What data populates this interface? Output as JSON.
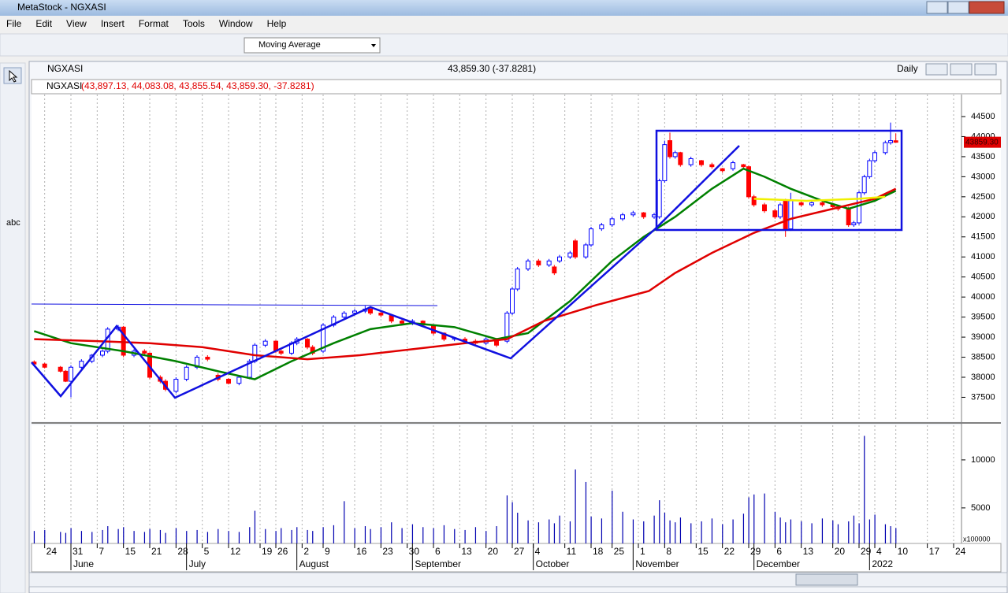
{
  "window": {
    "title": "MetaStock - NGXASI"
  },
  "menu": [
    "File",
    "Edit",
    "View",
    "Insert",
    "Format",
    "Tools",
    "Window",
    "Help"
  ],
  "toolbar": {
    "indicator": "Moving Average"
  },
  "tool_palette": {
    "text_tool": "abc"
  },
  "chart_window": {
    "title": "NGXASI",
    "quote": "43,859.30 (-37.8281)",
    "period": "Daily",
    "legend_name": "NGXASI",
    "legend_values": "(43,897.13, 44,083.08, 43,855.54, 43,859.30, -37.8281)",
    "price_tag": "43859.30"
  },
  "chart_data": [
    {
      "type": "candlestick",
      "x": [
        -2,
        0,
        3,
        4,
        5,
        7,
        9,
        11,
        12,
        14,
        15,
        17,
        19,
        20,
        22,
        23,
        25,
        27,
        29,
        31,
        33,
        35,
        37,
        39,
        40,
        42,
        44,
        45,
        47,
        48,
        50,
        51,
        53,
        55,
        57,
        59,
        61,
        62,
        64,
        66,
        68,
        70,
        72,
        74,
        76,
        78,
        80,
        82,
        84,
        86,
        88,
        89,
        90,
        92,
        94,
        96,
        97,
        98,
        100,
        101,
        103,
        104,
        106,
        108,
        110,
        112,
        114,
        116,
        117,
        118,
        119,
        120,
        121,
        123,
        125,
        127,
        129,
        131,
        133,
        134,
        135,
        137,
        139,
        140,
        141,
        142,
        144,
        146,
        148,
        150,
        151,
        153,
        154,
        155,
        156,
        157,
        158,
        160,
        161,
        162
      ],
      "open": [
        38380,
        38330,
        38250,
        38150,
        37900,
        38250,
        38400,
        38550,
        38650,
        39200,
        39250,
        38550,
        38650,
        38600,
        38000,
        37900,
        37650,
        37950,
        38250,
        38500,
        38050,
        37950,
        37850,
        38000,
        38400,
        38800,
        38900,
        38650,
        38600,
        38850,
        38950,
        38750,
        38650,
        39300,
        39500,
        39600,
        39650,
        39700,
        39600,
        39550,
        39400,
        39350,
        39400,
        39300,
        39100,
        38950,
        38950,
        38900,
        38850,
        38950,
        38900,
        39600,
        40200,
        40700,
        40900,
        40800,
        40750,
        40900,
        41000,
        41400,
        41000,
        41300,
        41700,
        41800,
        41950,
        42050,
        42100,
        42000,
        42000,
        42900,
        43900,
        43500,
        43600,
        43300,
        43400,
        43300,
        43200,
        43200,
        43300,
        43250,
        42500,
        42300,
        42150,
        42000,
        42400,
        41700,
        42350,
        42300,
        42350,
        42300,
        42250,
        42200,
        41800,
        41850,
        42600,
        43000,
        43400,
        43600,
        43850,
        43897.13
      ],
      "high": [
        38420,
        38360,
        38280,
        38180,
        38300,
        38450,
        38580,
        38700,
        39250,
        39300,
        39280,
        38700,
        38700,
        38620,
        38050,
        37950,
        38000,
        38300,
        38550,
        38550,
        38100,
        37980,
        38050,
        38450,
        38850,
        38950,
        38920,
        38700,
        38900,
        39000,
        38980,
        38800,
        39350,
        39550,
        39650,
        39700,
        39780,
        39720,
        39650,
        39580,
        39450,
        39450,
        39420,
        39320,
        39120,
        39000,
        39000,
        38950,
        39000,
        38980,
        39650,
        40250,
        40750,
        40950,
        40950,
        40950,
        40800,
        41050,
        41150,
        41450,
        41350,
        41750,
        41850,
        42000,
        42100,
        42150,
        42120,
        42100,
        42950,
        43900,
        44100,
        43650,
        43620,
        43500,
        43420,
        43350,
        43220,
        43400,
        43320,
        43280,
        42550,
        42350,
        42200,
        42350,
        42450,
        42600,
        42400,
        42400,
        42400,
        42350,
        42300,
        42250,
        41900,
        42650,
        43050,
        43450,
        43650,
        43900,
        44350,
        44083.08
      ],
      "low": [
        38300,
        38220,
        38120,
        37880,
        37500,
        38200,
        38350,
        38500,
        38600,
        39150,
        38500,
        38500,
        38550,
        37950,
        37850,
        37650,
        37600,
        37900,
        38200,
        38400,
        37900,
        37820,
        37800,
        37950,
        38350,
        38750,
        38600,
        38550,
        38550,
        38800,
        38700,
        38550,
        38600,
        39250,
        39450,
        39550,
        39600,
        39550,
        39500,
        39350,
        39300,
        39300,
        39250,
        39050,
        38900,
        38900,
        38850,
        38800,
        38800,
        38750,
        38850,
        39550,
        40150,
        40650,
        40750,
        40750,
        40550,
        40850,
        40950,
        40950,
        40950,
        41250,
        41650,
        41750,
        41900,
        42000,
        41950,
        41950,
        41950,
        42850,
        43450,
        43450,
        43250,
        43250,
        43250,
        43200,
        43100,
        43150,
        43200,
        42450,
        42250,
        42100,
        41950,
        41950,
        41500,
        41650,
        42250,
        42250,
        42250,
        42200,
        42150,
        41750,
        41750,
        41800,
        42550,
        42950,
        43350,
        43550,
        43800,
        43855.54
      ],
      "close": [
        38330,
        38250,
        38150,
        37900,
        38250,
        38400,
        38550,
        38650,
        39200,
        39250,
        38550,
        38650,
        38600,
        38000,
        37900,
        37700,
        37950,
        38250,
        38500,
        38450,
        37950,
        37850,
        38000,
        38400,
        38800,
        38900,
        38650,
        38600,
        38850,
        38950,
        38750,
        38600,
        39300,
        39500,
        39600,
        39650,
        39700,
        39600,
        39550,
        39400,
        39350,
        39400,
        39300,
        39100,
        38950,
        38980,
        38900,
        38850,
        38950,
        38800,
        39600,
        40200,
        40700,
        40900,
        40800,
        40900,
        40600,
        41000,
        41100,
        41000,
        41300,
        41700,
        41800,
        41950,
        42050,
        42100,
        42000,
        42050,
        42900,
        43800,
        43500,
        43600,
        43300,
        43450,
        43300,
        43250,
        43150,
        43350,
        43250,
        42500,
        42300,
        42150,
        42000,
        42300,
        41700,
        42400,
        42300,
        42350,
        42300,
        42250,
        42200,
        41800,
        41850,
        42600,
        43000,
        43400,
        43600,
        43850,
        43900,
        43859.3
      ],
      "up_color": "#0000ff",
      "down_color": "#ff0000",
      "series": [
        {
          "color": "#008000",
          "x": [
            -2,
            5,
            15,
            25,
            33,
            40,
            47,
            55,
            62,
            70,
            78,
            86,
            92,
            100,
            108,
            114,
            120,
            127,
            133,
            137,
            142,
            148,
            153,
            158,
            162
          ],
          "values": [
            39150,
            38850,
            38650,
            38400,
            38150,
            37950,
            38400,
            38850,
            39200,
            39350,
            39250,
            38950,
            39100,
            39900,
            40900,
            41500,
            42000,
            42700,
            43200,
            43000,
            42700,
            42400,
            42200,
            42400,
            42650
          ]
        },
        {
          "color": "#e00000",
          "x": [
            -2,
            10,
            20,
            30,
            40,
            50,
            60,
            70,
            80,
            88,
            95,
            105,
            115,
            120,
            127,
            135,
            142,
            150,
            158,
            162
          ],
          "values": [
            38950,
            38900,
            38850,
            38750,
            38550,
            38450,
            38550,
            38700,
            38850,
            38950,
            39400,
            39800,
            40150,
            40600,
            41100,
            41600,
            41950,
            42200,
            42450,
            42700
          ]
        },
        {
          "color": "#f0f000",
          "x": [
            135,
            145,
            155,
            160
          ],
          "values": [
            42450,
            42400,
            42450,
            42500
          ]
        }
      ],
      "xlim": [
        -2.5,
        174.5
      ],
      "ylim": [
        36900,
        45050
      ],
      "yticks": [
        37500,
        38000,
        38500,
        39000,
        39500,
        40000,
        40500,
        41000,
        41500,
        42000,
        42500,
        43000,
        43500,
        44000,
        44500
      ],
      "xticks": [
        {
          "value": 0,
          "label": "24"
        },
        {
          "value": 5,
          "label": "31"
        },
        {
          "value": 10,
          "label": "7"
        },
        {
          "value": 15,
          "label": "15"
        },
        {
          "value": 20,
          "label": "21"
        },
        {
          "value": 25,
          "label": "28"
        },
        {
          "value": 30,
          "label": "5"
        },
        {
          "value": 35,
          "label": "12"
        },
        {
          "value": 41,
          "label": "19"
        },
        {
          "value": 44,
          "label": "26"
        },
        {
          "value": 49,
          "label": "2"
        },
        {
          "value": 53,
          "label": "9"
        },
        {
          "value": 59,
          "label": "16"
        },
        {
          "value": 64,
          "label": "23"
        },
        {
          "value": 69,
          "label": "30"
        },
        {
          "value": 74,
          "label": "6"
        },
        {
          "value": 79,
          "label": "13"
        },
        {
          "value": 84,
          "label": "20"
        },
        {
          "value": 89,
          "label": "27"
        },
        {
          "value": 93,
          "label": "4"
        },
        {
          "value": 99,
          "label": "11"
        },
        {
          "value": 104,
          "label": "18"
        },
        {
          "value": 108,
          "label": "25"
        },
        {
          "value": 113,
          "label": "1"
        },
        {
          "value": 118,
          "label": "8"
        },
        {
          "value": 124,
          "label": "15"
        },
        {
          "value": 129,
          "label": "22"
        },
        {
          "value": 134,
          "label": "29"
        },
        {
          "value": 139,
          "label": "6"
        },
        {
          "value": 144,
          "label": "13"
        },
        {
          "value": 150,
          "label": "20"
        },
        {
          "value": 155,
          "label": "29"
        },
        {
          "value": 158,
          "label": "4"
        },
        {
          "value": 162,
          "label": "10"
        },
        {
          "value": 168,
          "label": "17"
        },
        {
          "value": 173,
          "label": "24"
        }
      ],
      "months": [
        {
          "value": 5,
          "label": "June"
        },
        {
          "value": 27,
          "label": "July"
        },
        {
          "value": 48,
          "label": "August"
        },
        {
          "value": 70,
          "label": "September"
        },
        {
          "value": 93,
          "label": "October"
        },
        {
          "value": 112,
          "label": "November"
        },
        {
          "value": 135,
          "label": "December"
        },
        {
          "value": 157,
          "label": "2022"
        }
      ],
      "grid": true
    },
    {
      "type": "bar",
      "x": [
        -2,
        0,
        3,
        4,
        5,
        7,
        9,
        11,
        12,
        14,
        15,
        17,
        19,
        20,
        22,
        23,
        25,
        27,
        29,
        31,
        33,
        35,
        37,
        39,
        40,
        42,
        44,
        45,
        47,
        48,
        50,
        51,
        53,
        55,
        57,
        59,
        61,
        62,
        64,
        66,
        68,
        70,
        72,
        74,
        76,
        78,
        80,
        82,
        84,
        86,
        88,
        89,
        90,
        92,
        94,
        96,
        97,
        98,
        100,
        101,
        103,
        104,
        106,
        108,
        110,
        112,
        114,
        116,
        117,
        118,
        119,
        120,
        121,
        123,
        125,
        127,
        129,
        131,
        133,
        134,
        135,
        137,
        139,
        140,
        141,
        142,
        144,
        146,
        148,
        150,
        151,
        153,
        154,
        155,
        156,
        157,
        158,
        160,
        161,
        162
      ],
      "values": [
        2600,
        2700,
        2500,
        2400,
        2900,
        2600,
        2500,
        2700,
        3100,
        2800,
        3000,
        2600,
        2500,
        2800,
        2700,
        2400,
        2900,
        2600,
        2700,
        2500,
        2800,
        2600,
        2500,
        3000,
        4700,
        2800,
        2600,
        2900,
        2700,
        3000,
        2700,
        2600,
        3000,
        3200,
        5700,
        2900,
        3100,
        2800,
        3000,
        3500,
        2900,
        3300,
        3000,
        2900,
        3200,
        2800,
        2700,
        3000,
        2600,
        3100,
        6300,
        5600,
        4500,
        3700,
        3500,
        3800,
        3400,
        4200,
        3600,
        9000,
        7700,
        4100,
        3900,
        6800,
        4600,
        3800,
        3600,
        4200,
        5800,
        4500,
        3700,
        3500,
        4000,
        3400,
        3600,
        3900,
        3300,
        3800,
        4400,
        6100,
        6400,
        6500,
        4600,
        4000,
        3500,
        3800,
        3600,
        3400,
        3900,
        3700,
        3300,
        3600,
        4200,
        3400,
        12500,
        3800,
        4300,
        3300,
        3100,
        2900
      ],
      "color": "#0000b0",
      "xlim": [
        -2.5,
        174.5
      ],
      "ylim": [
        1300,
        13600
      ],
      "yticks": [
        5000,
        10000
      ],
      "scale_note": "x100000"
    }
  ]
}
